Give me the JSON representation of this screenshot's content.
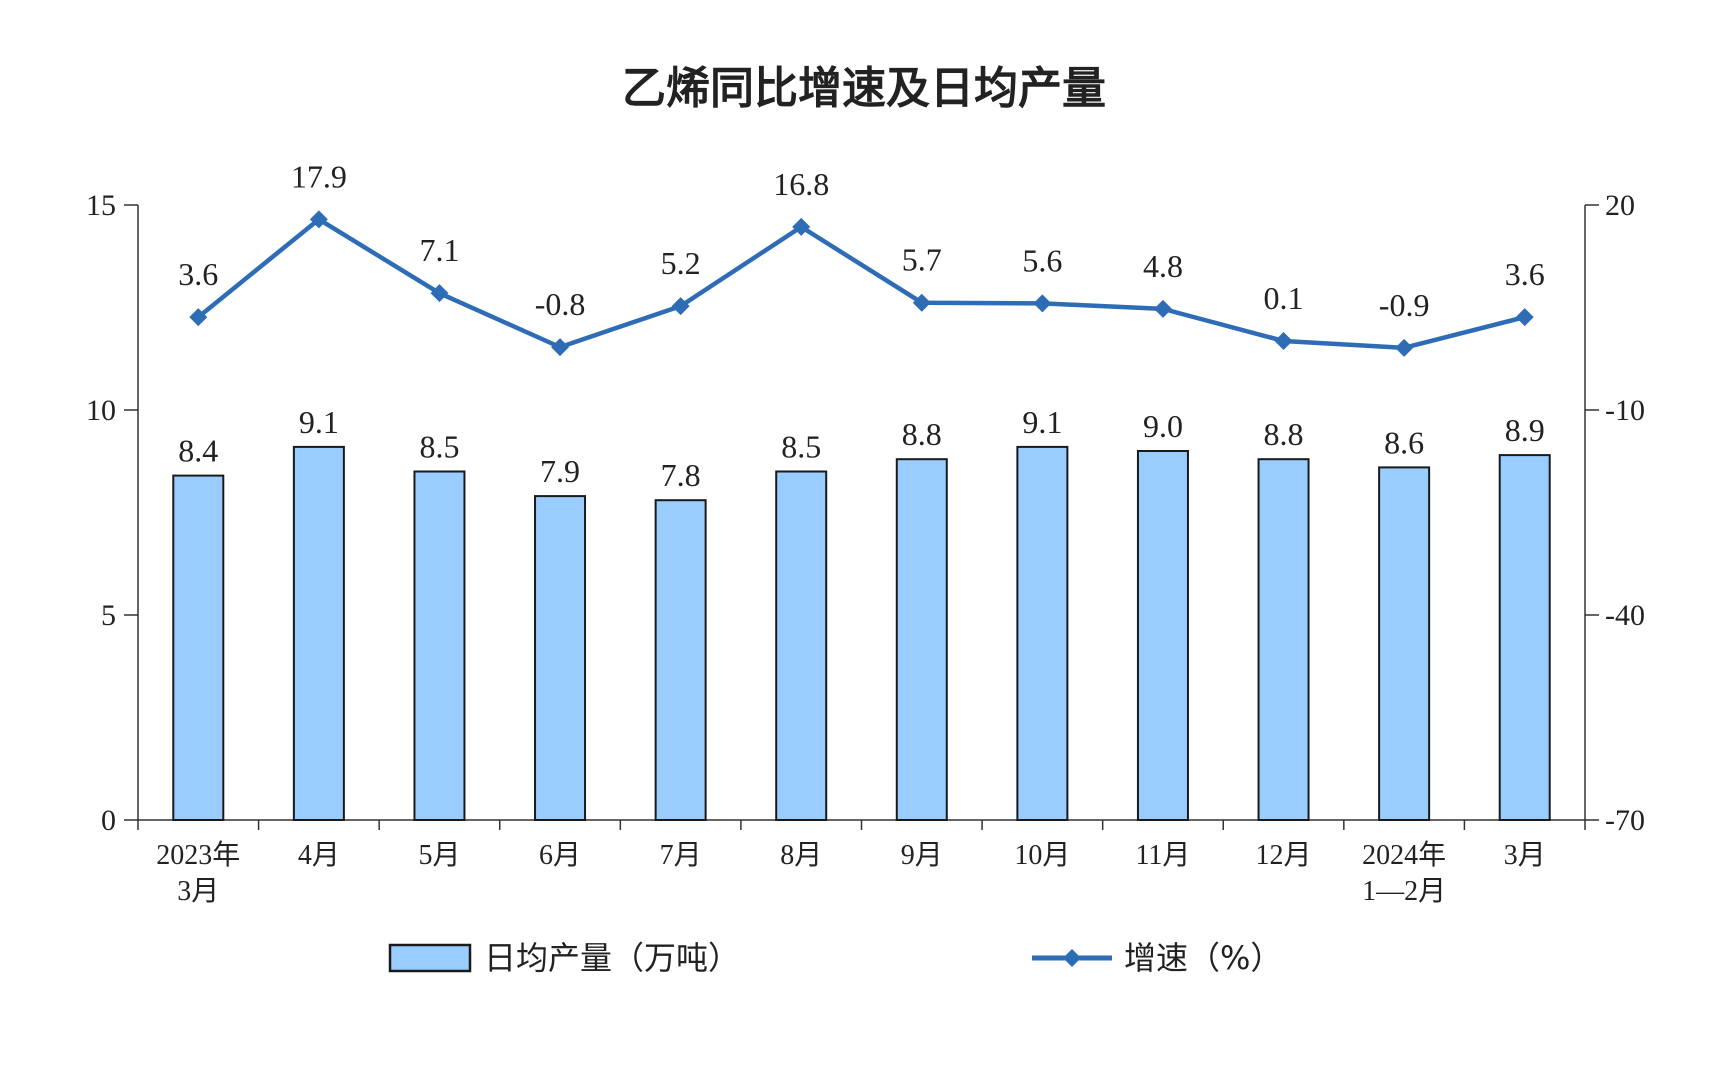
{
  "title": "乙烯同比增速及日均产量",
  "colors": {
    "bar_fill": "#99ccff",
    "bar_stroke": "#1a1a1a",
    "line": "#2e6db5",
    "axis": "#333333"
  },
  "chart_data": {
    "type": "bar",
    "title": "乙烯同比增速及日均产量",
    "categories": [
      [
        "2023年",
        "3月"
      ],
      [
        "4月"
      ],
      [
        "5月"
      ],
      [
        "6月"
      ],
      [
        "7月"
      ],
      [
        "8月"
      ],
      [
        "9月"
      ],
      [
        "10月"
      ],
      [
        "11月"
      ],
      [
        "12月"
      ],
      [
        "2024年",
        "1—2月"
      ],
      [
        "3月"
      ]
    ],
    "series": [
      {
        "name": "日均产量（万吨）",
        "type": "bar",
        "axis": "left",
        "values": [
          8.4,
          9.1,
          8.5,
          7.9,
          7.8,
          8.5,
          8.8,
          9.1,
          9.0,
          8.8,
          8.6,
          8.9
        ],
        "labels": [
          "8.4",
          "9.1",
          "8.5",
          "7.9",
          "7.8",
          "8.5",
          "8.8",
          "9.1",
          "9.0",
          "8.8",
          "8.6",
          "8.9"
        ]
      },
      {
        "name": "增速（%）",
        "type": "line",
        "axis": "right",
        "marker": "diamond",
        "values": [
          3.6,
          17.9,
          7.1,
          -0.8,
          5.2,
          16.8,
          5.7,
          5.6,
          4.8,
          0.1,
          -0.9,
          3.6
        ],
        "labels": [
          "3.6",
          "17.9",
          "7.1",
          "-0.8",
          "5.2",
          "16.8",
          "5.7",
          "5.6",
          "4.8",
          "0.1",
          "-0.9",
          "3.6"
        ]
      }
    ],
    "y_left": {
      "min": 0,
      "max": 15,
      "ticks": [
        0,
        5,
        10,
        15
      ],
      "tick_labels": [
        "0",
        "5",
        "10",
        "15"
      ]
    },
    "y_right": {
      "min": -70,
      "max": 20,
      "ticks": [
        -70,
        -40,
        -10,
        20
      ],
      "tick_labels": [
        "-70",
        "-40",
        "-10",
        "20"
      ]
    },
    "legend": {
      "placement": "bottom"
    },
    "grid": false
  }
}
